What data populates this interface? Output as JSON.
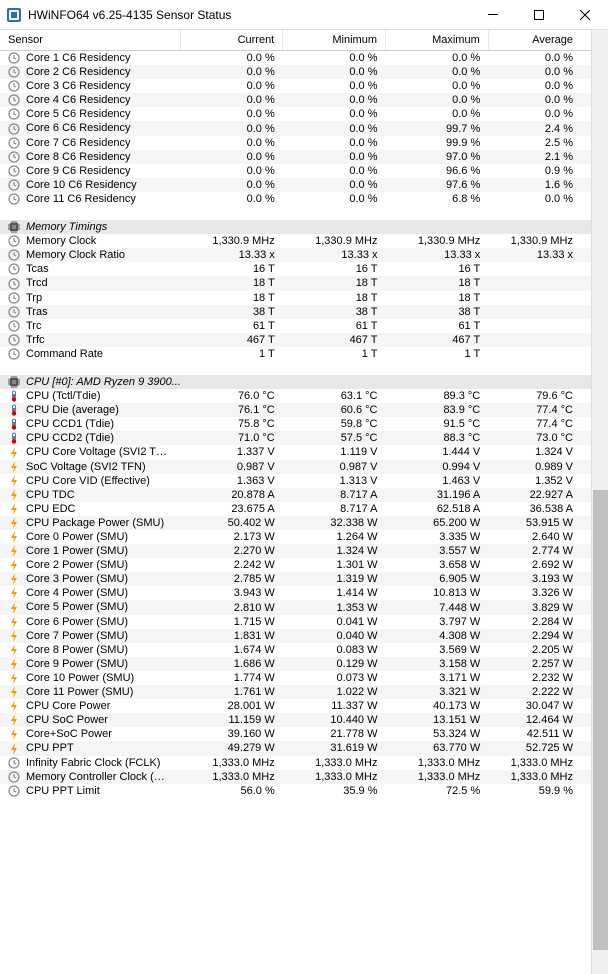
{
  "window": {
    "title": "HWiNFO64 v6.25-4135 Sensor Status"
  },
  "columns": {
    "c0": "Sensor",
    "c1": "Current",
    "c2": "Minimum",
    "c3": "Maximum",
    "c4": "Average"
  },
  "icons": {
    "clock": "clock-icon",
    "chip": "chip-icon",
    "therm": "thermometer-icon",
    "bolt": "bolt-icon"
  },
  "rows": [
    {
      "type": "data",
      "icon": "clock",
      "label": "Core 1 C6 Residency",
      "c": "0.0 %",
      "mn": "0.0 %",
      "mx": "0.0 %",
      "av": "0.0 %"
    },
    {
      "type": "data",
      "icon": "clock",
      "label": "Core 2 C6 Residency",
      "c": "0.0 %",
      "mn": "0.0 %",
      "mx": "0.0 %",
      "av": "0.0 %"
    },
    {
      "type": "data",
      "icon": "clock",
      "label": "Core 3 C6 Residency",
      "c": "0.0 %",
      "mn": "0.0 %",
      "mx": "0.0 %",
      "av": "0.0 %"
    },
    {
      "type": "data",
      "icon": "clock",
      "label": "Core 4 C6 Residency",
      "c": "0.0 %",
      "mn": "0.0 %",
      "mx": "0.0 %",
      "av": "0.0 %"
    },
    {
      "type": "data",
      "icon": "clock",
      "label": "Core 5 C6 Residency",
      "c": "0.0 %",
      "mn": "0.0 %",
      "mx": "0.0 %",
      "av": "0.0 %"
    },
    {
      "type": "data",
      "icon": "clock",
      "label": "Core 6 C6 Residency",
      "c": "0.0 %",
      "mn": "0.0 %",
      "mx": "99.7 %",
      "av": "2.4 %"
    },
    {
      "type": "data",
      "icon": "clock",
      "label": "Core 7 C6 Residency",
      "c": "0.0 %",
      "mn": "0.0 %",
      "mx": "99.9 %",
      "av": "2.5 %"
    },
    {
      "type": "data",
      "icon": "clock",
      "label": "Core 8 C6 Residency",
      "c": "0.0 %",
      "mn": "0.0 %",
      "mx": "97.0 %",
      "av": "2.1 %"
    },
    {
      "type": "data",
      "icon": "clock",
      "label": "Core 9 C6 Residency",
      "c": "0.0 %",
      "mn": "0.0 %",
      "mx": "96.6 %",
      "av": "0.9 %"
    },
    {
      "type": "data",
      "icon": "clock",
      "label": "Core 10 C6 Residency",
      "c": "0.0 %",
      "mn": "0.0 %",
      "mx": "97.6 %",
      "av": "1.6 %"
    },
    {
      "type": "data",
      "icon": "clock",
      "label": "Core 11 C6 Residency",
      "c": "0.0 %",
      "mn": "0.0 %",
      "mx": "6.8 %",
      "av": "0.0 %"
    },
    {
      "type": "spacer"
    },
    {
      "type": "header",
      "icon": "chip",
      "label": "Memory Timings"
    },
    {
      "type": "data",
      "icon": "clock",
      "label": "Memory Clock",
      "c": "1,330.9 MHz",
      "mn": "1,330.9 MHz",
      "mx": "1,330.9 MHz",
      "av": "1,330.9 MHz"
    },
    {
      "type": "data",
      "icon": "clock",
      "label": "Memory Clock Ratio",
      "c": "13.33 x",
      "mn": "13.33 x",
      "mx": "13.33 x",
      "av": "13.33 x"
    },
    {
      "type": "data",
      "icon": "clock",
      "label": "Tcas",
      "c": "16 T",
      "mn": "16 T",
      "mx": "16 T",
      "av": ""
    },
    {
      "type": "data",
      "icon": "clock",
      "label": "Trcd",
      "c": "18 T",
      "mn": "18 T",
      "mx": "18 T",
      "av": ""
    },
    {
      "type": "data",
      "icon": "clock",
      "label": "Trp",
      "c": "18 T",
      "mn": "18 T",
      "mx": "18 T",
      "av": ""
    },
    {
      "type": "data",
      "icon": "clock",
      "label": "Tras",
      "c": "38 T",
      "mn": "38 T",
      "mx": "38 T",
      "av": ""
    },
    {
      "type": "data",
      "icon": "clock",
      "label": "Trc",
      "c": "61 T",
      "mn": "61 T",
      "mx": "61 T",
      "av": ""
    },
    {
      "type": "data",
      "icon": "clock",
      "label": "Trfc",
      "c": "467 T",
      "mn": "467 T",
      "mx": "467 T",
      "av": ""
    },
    {
      "type": "data",
      "icon": "clock",
      "label": "Command Rate",
      "c": "1 T",
      "mn": "1 T",
      "mx": "1 T",
      "av": ""
    },
    {
      "type": "spacer"
    },
    {
      "type": "header",
      "icon": "chip",
      "label": "CPU [#0]: AMD Ryzen 9 3900..."
    },
    {
      "type": "data",
      "icon": "therm",
      "label": "CPU (Tctl/Tdie)",
      "c": "76.0 °C",
      "mn": "63.1 °C",
      "mx": "89.3 °C",
      "av": "79.6 °C"
    },
    {
      "type": "data",
      "icon": "therm",
      "label": "CPU Die (average)",
      "c": "76.1 °C",
      "mn": "60.6 °C",
      "mx": "83.9 °C",
      "av": "77.4 °C"
    },
    {
      "type": "data",
      "icon": "therm",
      "label": "CPU CCD1 (Tdie)",
      "c": "75.8 °C",
      "mn": "59.8 °C",
      "mx": "91.5 °C",
      "av": "77.4 °C"
    },
    {
      "type": "data",
      "icon": "therm",
      "label": "CPU CCD2 (Tdie)",
      "c": "71.0 °C",
      "mn": "57.5 °C",
      "mx": "88.3 °C",
      "av": "73.0 °C"
    },
    {
      "type": "data",
      "icon": "bolt",
      "label": "CPU Core Voltage (SVI2 TFN)",
      "c": "1.337 V",
      "mn": "1.119 V",
      "mx": "1.444 V",
      "av": "1.324 V"
    },
    {
      "type": "data",
      "icon": "bolt",
      "label": "SoC Voltage (SVI2 TFN)",
      "c": "0.987 V",
      "mn": "0.987 V",
      "mx": "0.994 V",
      "av": "0.989 V"
    },
    {
      "type": "data",
      "icon": "bolt",
      "label": "CPU Core VID (Effective)",
      "c": "1.363 V",
      "mn": "1.313 V",
      "mx": "1.463 V",
      "av": "1.352 V"
    },
    {
      "type": "data",
      "icon": "bolt",
      "label": "CPU TDC",
      "c": "20.878 A",
      "mn": "8.717 A",
      "mx": "31.196 A",
      "av": "22.927 A"
    },
    {
      "type": "data",
      "icon": "bolt",
      "label": "CPU EDC",
      "c": "23.675 A",
      "mn": "8.717 A",
      "mx": "62.518 A",
      "av": "36.538 A"
    },
    {
      "type": "data",
      "icon": "bolt",
      "label": "CPU Package Power (SMU)",
      "c": "50.402 W",
      "mn": "32.338 W",
      "mx": "65.200 W",
      "av": "53.915 W"
    },
    {
      "type": "data",
      "icon": "bolt",
      "label": "Core 0 Power (SMU)",
      "c": "2.173 W",
      "mn": "1.264 W",
      "mx": "3.335 W",
      "av": "2.640 W"
    },
    {
      "type": "data",
      "icon": "bolt",
      "label": "Core 1 Power (SMU)",
      "c": "2.270 W",
      "mn": "1.324 W",
      "mx": "3.557 W",
      "av": "2.774 W"
    },
    {
      "type": "data",
      "icon": "bolt",
      "label": "Core 2 Power (SMU)",
      "c": "2.242 W",
      "mn": "1.301 W",
      "mx": "3.658 W",
      "av": "2.692 W"
    },
    {
      "type": "data",
      "icon": "bolt",
      "label": "Core 3 Power (SMU)",
      "c": "2.785 W",
      "mn": "1.319 W",
      "mx": "6.905 W",
      "av": "3.193 W"
    },
    {
      "type": "data",
      "icon": "bolt",
      "label": "Core 4 Power (SMU)",
      "c": "3.943 W",
      "mn": "1.414 W",
      "mx": "10.813 W",
      "av": "3.326 W"
    },
    {
      "type": "data",
      "icon": "bolt",
      "label": "Core 5 Power (SMU)",
      "c": "2.810 W",
      "mn": "1.353 W",
      "mx": "7.448 W",
      "av": "3.829 W"
    },
    {
      "type": "data",
      "icon": "bolt",
      "label": "Core 6 Power (SMU)",
      "c": "1.715 W",
      "mn": "0.041 W",
      "mx": "3.797 W",
      "av": "2.284 W"
    },
    {
      "type": "data",
      "icon": "bolt",
      "label": "Core 7 Power (SMU)",
      "c": "1.831 W",
      "mn": "0.040 W",
      "mx": "4.308 W",
      "av": "2.294 W"
    },
    {
      "type": "data",
      "icon": "bolt",
      "label": "Core 8 Power (SMU)",
      "c": "1.674 W",
      "mn": "0.083 W",
      "mx": "3.569 W",
      "av": "2.205 W"
    },
    {
      "type": "data",
      "icon": "bolt",
      "label": "Core 9 Power (SMU)",
      "c": "1.686 W",
      "mn": "0.129 W",
      "mx": "3.158 W",
      "av": "2.257 W"
    },
    {
      "type": "data",
      "icon": "bolt",
      "label": "Core 10 Power (SMU)",
      "c": "1.774 W",
      "mn": "0.073 W",
      "mx": "3.171 W",
      "av": "2.232 W"
    },
    {
      "type": "data",
      "icon": "bolt",
      "label": "Core 11 Power (SMU)",
      "c": "1.761 W",
      "mn": "1.022 W",
      "mx": "3.321 W",
      "av": "2.222 W"
    },
    {
      "type": "data",
      "icon": "bolt",
      "label": "CPU Core Power",
      "c": "28.001 W",
      "mn": "11.337 W",
      "mx": "40.173 W",
      "av": "30.047 W"
    },
    {
      "type": "data",
      "icon": "bolt",
      "label": "CPU SoC Power",
      "c": "11.159 W",
      "mn": "10.440 W",
      "mx": "13.151 W",
      "av": "12.464 W"
    },
    {
      "type": "data",
      "icon": "bolt",
      "label": "Core+SoC Power",
      "c": "39.160 W",
      "mn": "21.778 W",
      "mx": "53.324 W",
      "av": "42.511 W"
    },
    {
      "type": "data",
      "icon": "bolt",
      "label": "CPU PPT",
      "c": "49.279 W",
      "mn": "31.619 W",
      "mx": "63.770 W",
      "av": "52.725 W"
    },
    {
      "type": "data",
      "icon": "clock",
      "label": "Infinity Fabric Clock (FCLK)",
      "c": "1,333.0 MHz",
      "mn": "1,333.0 MHz",
      "mx": "1,333.0 MHz",
      "av": "1,333.0 MHz"
    },
    {
      "type": "data",
      "icon": "clock",
      "label": "Memory Controller Clock (UCLK)",
      "c": "1,333.0 MHz",
      "mn": "1,333.0 MHz",
      "mx": "1,333.0 MHz",
      "av": "1,333.0 MHz"
    },
    {
      "type": "data",
      "icon": "clock",
      "label": "CPU PPT Limit",
      "c": "56.0 %",
      "mn": "35.9 %",
      "mx": "72.5 %",
      "av": "59.9 %"
    }
  ],
  "colors": {
    "even_row": "#f5f5f5",
    "odd_row": "#ffffff",
    "header_row": "#e8e8e8",
    "clock_icon": "#808080",
    "therm_icon": "#0066cc",
    "bolt_icon": "#ff9900",
    "chip_icon": "#555555"
  }
}
